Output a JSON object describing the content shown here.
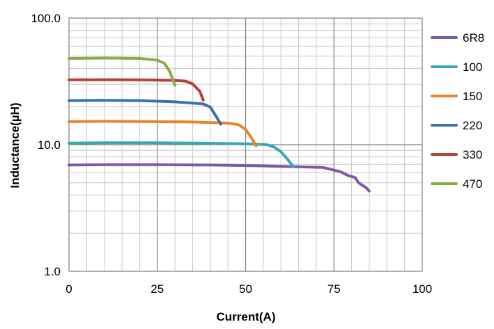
{
  "chart_data": {
    "type": "line",
    "title": "",
    "xlabel": "Current(A)",
    "ylabel": "Inductance(µH)",
    "xlim": [
      0,
      100
    ],
    "ylim": [
      1,
      100
    ],
    "y_scale": "log",
    "grid": true,
    "legend_position": "right",
    "x_ticks": [
      "0",
      "25",
      "50",
      "75",
      "100"
    ],
    "y_ticks": [
      "1.0",
      "10.0",
      "100.0"
    ],
    "series": [
      {
        "name": "6R8",
        "color": "#7b5aa6",
        "x": [
          0,
          10,
          25,
          40,
          55,
          65,
          72,
          74,
          76,
          77,
          78,
          79,
          80,
          81,
          82,
          84,
          85
        ],
        "y": [
          6.9,
          6.95,
          6.95,
          6.9,
          6.8,
          6.7,
          6.6,
          6.4,
          6.2,
          6.1,
          5.9,
          5.7,
          5.6,
          5.5,
          5.0,
          4.6,
          4.3
        ]
      },
      {
        "name": "100",
        "color": "#3aa7b6",
        "x": [
          0,
          10,
          25,
          40,
          50,
          56,
          58,
          60,
          62,
          63.5
        ],
        "y": [
          10.3,
          10.35,
          10.35,
          10.25,
          10.15,
          10.0,
          9.6,
          8.8,
          7.6,
          6.7
        ]
      },
      {
        "name": "150",
        "color": "#e8842c",
        "x": [
          0,
          10,
          25,
          35,
          45,
          48,
          50,
          51.5,
          53
        ],
        "y": [
          15.2,
          15.3,
          15.2,
          15.1,
          14.8,
          14.4,
          13.2,
          11.5,
          9.8
        ]
      },
      {
        "name": "220",
        "color": "#3d70b2",
        "x": [
          0,
          10,
          20,
          30,
          38,
          40,
          41.5,
          43
        ],
        "y": [
          22.3,
          22.4,
          22.3,
          21.8,
          21.0,
          19.8,
          17.0,
          14.5
        ]
      },
      {
        "name": "330",
        "color": "#b5403b",
        "x": [
          0,
          10,
          20,
          30,
          33,
          35,
          37,
          38
        ],
        "y": [
          32.5,
          32.6,
          32.5,
          32.2,
          31.8,
          30.2,
          26.5,
          22.5
        ]
      },
      {
        "name": "470",
        "color": "#8cac4b",
        "x": [
          0,
          10,
          20,
          25,
          27,
          28.5,
          30
        ],
        "y": [
          48.0,
          48.3,
          48.0,
          46.5,
          44.0,
          38.0,
          29.5
        ]
      }
    ]
  }
}
